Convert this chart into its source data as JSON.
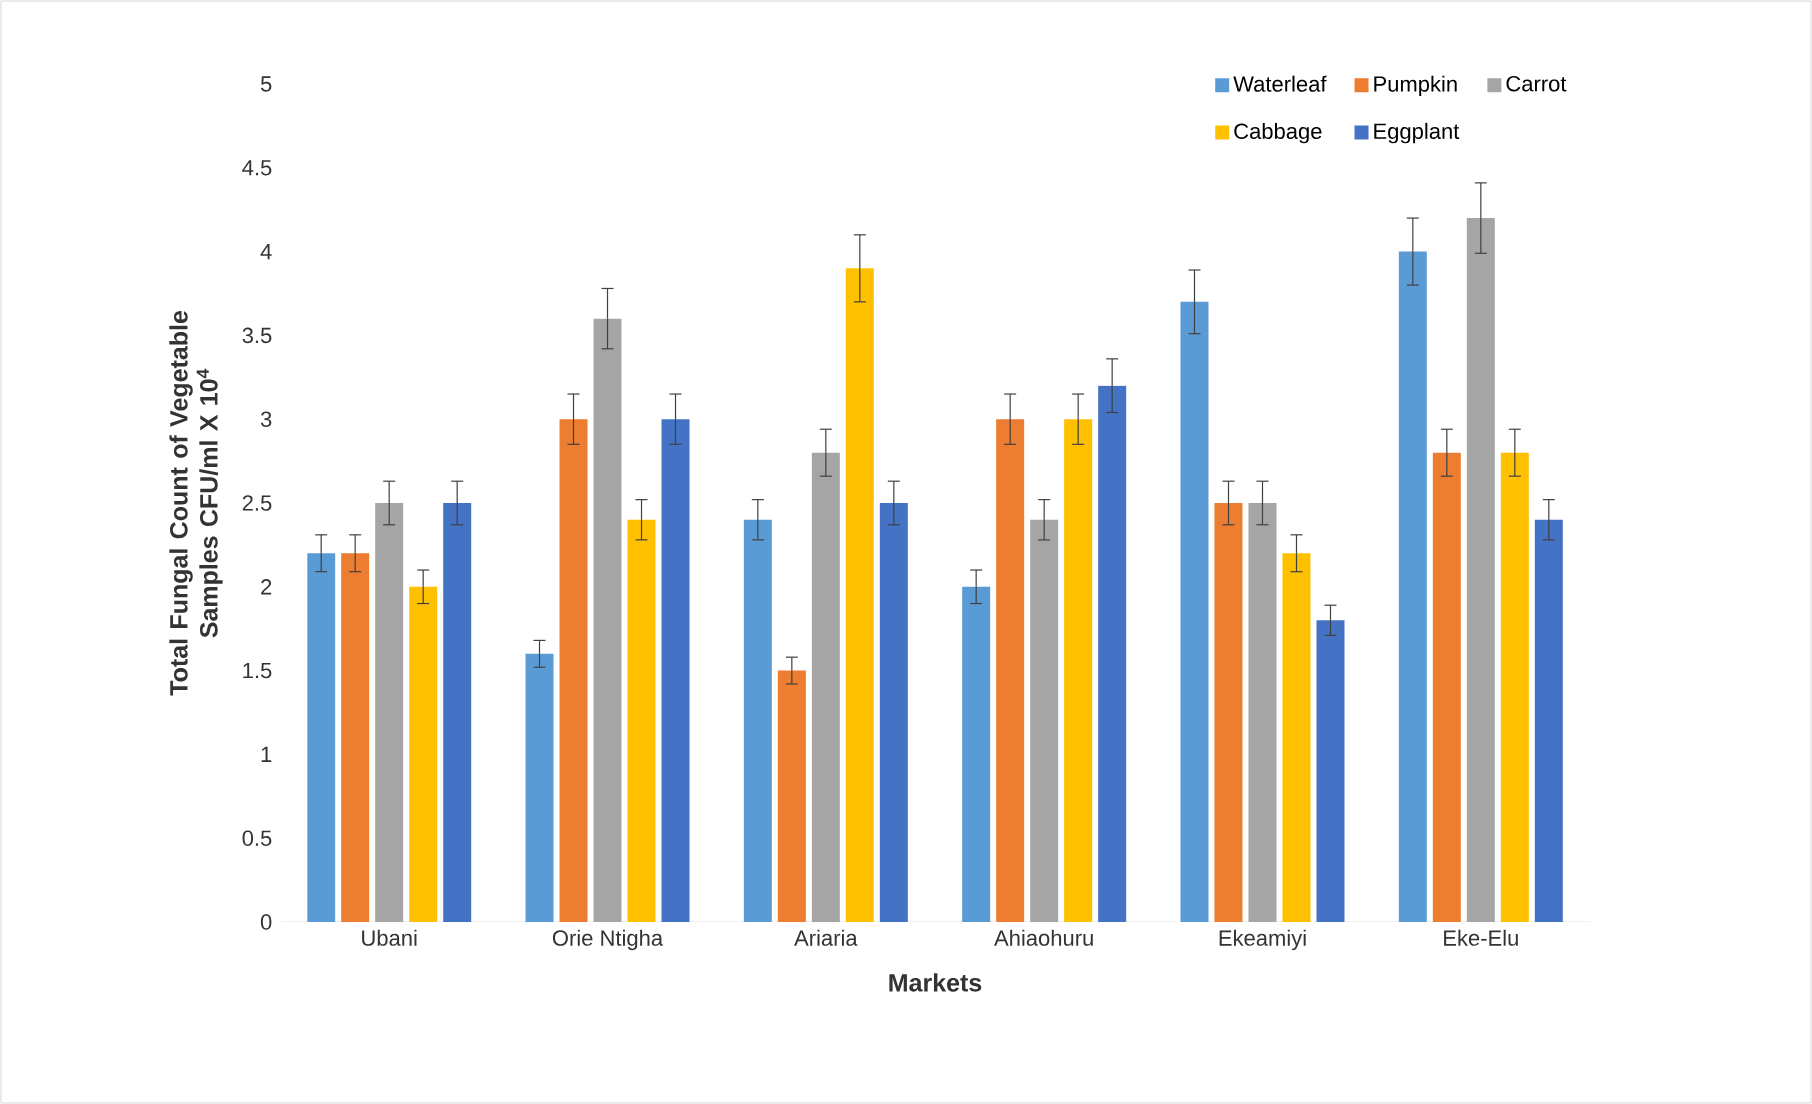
{
  "chart_data": {
    "type": "bar",
    "xlabel": "Markets",
    "ylabel": "Total Fungal Count of Vegetable Samples CFU/ml X 10$^{4}$",
    "categories": [
      "Ubani",
      "Orie Ntigha",
      "Ariaria",
      "Ahiaohuru",
      "Ekeamiyi",
      "Eke-Elu"
    ],
    "series": [
      {
        "name": "Waterleaf",
        "color": "#5b9bd5",
        "values": [
          2.2,
          1.6,
          2.4,
          2.0,
          3.7,
          4.0
        ],
        "errors": [
          0.11,
          0.08,
          0.12,
          0.1,
          0.19,
          0.2
        ]
      },
      {
        "name": "Pumpkin",
        "color": "#ed7d31",
        "values": [
          2.2,
          3.0,
          1.5,
          3.0,
          2.5,
          2.8
        ],
        "errors": [
          0.11,
          0.15,
          0.08,
          0.15,
          0.13,
          0.14
        ]
      },
      {
        "name": "Carrot",
        "color": "#a5a5a5",
        "values": [
          2.5,
          3.6,
          2.8,
          2.4,
          2.5,
          4.2
        ],
        "errors": [
          0.13,
          0.18,
          0.14,
          0.12,
          0.13,
          0.21
        ]
      },
      {
        "name": "Cabbage",
        "color": "#ffc000",
        "values": [
          2.0,
          2.4,
          3.9,
          3.0,
          2.2,
          2.8
        ],
        "errors": [
          0.1,
          0.12,
          0.2,
          0.15,
          0.11,
          0.14
        ]
      },
      {
        "name": "Eggplant",
        "color": "#4472c4",
        "values": [
          2.5,
          3.0,
          2.5,
          3.2,
          1.8,
          2.4
        ],
        "errors": [
          0.13,
          0.15,
          0.13,
          0.16,
          0.09,
          0.12
        ]
      }
    ],
    "ylim": [
      0,
      5
    ],
    "yticks": [
      0,
      0.5,
      1,
      1.5,
      2,
      2.5,
      3,
      3.5,
      4,
      4.5,
      5
    ],
    "legend": "top right",
    "grid": false
  }
}
